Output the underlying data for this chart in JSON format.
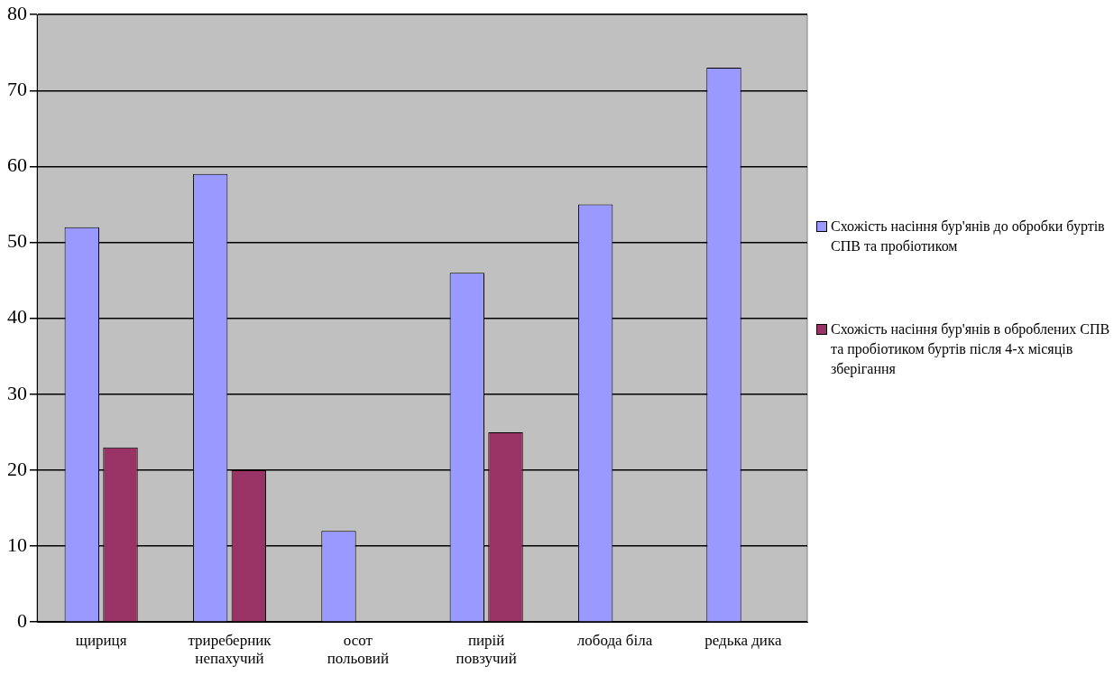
{
  "chart_data": {
    "type": "bar",
    "categories": [
      "щириця",
      "триреберник непахучий",
      "осот польовий",
      "пирій повзучий",
      "лобода біла",
      "редька дика"
    ],
    "series": [
      {
        "name": "Схожість насіння бур'янів до обробки буртів СПВ та пробіотиком",
        "color": "#9999ff",
        "values": [
          52,
          59,
          12,
          46,
          55,
          73
        ]
      },
      {
        "name": "Схожість насіння бур'янів в оброблених СПВ та пробіотиком буртів після 4-х місяців зберігання",
        "color": "#993366",
        "values": [
          23,
          20,
          0,
          25,
          0,
          0
        ]
      }
    ],
    "ylim": [
      0,
      80
    ],
    "yticks": [
      0,
      10,
      20,
      30,
      40,
      50,
      60,
      70,
      80
    ],
    "grid": "y",
    "legend": "right"
  }
}
